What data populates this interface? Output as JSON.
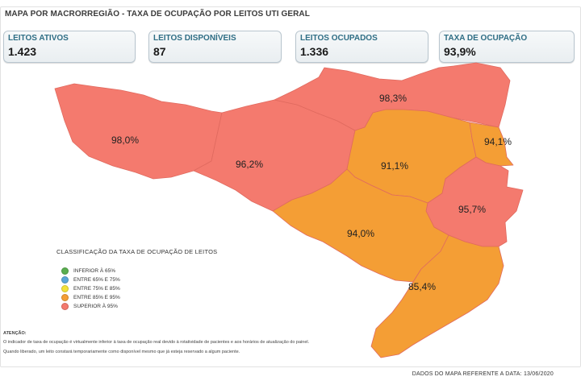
{
  "title": "MAPA POR MACRORREGIÃO - TAXA DE OCUPAÇÃO POR LEITOS UTI GERAL",
  "kpis": [
    {
      "label": "LEITOS ATIVOS",
      "value": "1.423"
    },
    {
      "label": "LEITOS DISPONÍVEIS",
      "value": "87"
    },
    {
      "label": "LEITOS OCUPADOS",
      "value": "1.336"
    },
    {
      "label": "TAXA DE OCUPAÇÃO",
      "value": "93,9%"
    }
  ],
  "regions": [
    {
      "name": "oeste",
      "value": "98,0%",
      "color": "#f47a6e"
    },
    {
      "name": "meio-oeste",
      "value": "96,2%",
      "color": "#f47a6e"
    },
    {
      "name": "planalto-norte-nordeste",
      "value": "98,3%",
      "color": "#f47a6e"
    },
    {
      "name": "vale-do-itajai",
      "value": "91,1%",
      "color": "#f49e35"
    },
    {
      "name": "foz-do-rio-itajai",
      "value": "94,1%",
      "color": "#f49e35"
    },
    {
      "name": "grande-florianopolis",
      "value": "95,7%",
      "color": "#f47a6e"
    },
    {
      "name": "serra-catarinense",
      "value": "94,0%",
      "color": "#f49e35"
    },
    {
      "name": "sul",
      "value": "85,4%",
      "color": "#f49e35"
    }
  ],
  "legend": {
    "title": "CLASSIFICAÇÃO DA TAXA DE OCUPAÇÃO DE LEITOS",
    "items": [
      {
        "label": "INFERIOR À 65%",
        "color": "#5aae4f"
      },
      {
        "label": "ENTRE 65% E 75%",
        "color": "#5aa6d8"
      },
      {
        "label": "ENTRE 75% E 85%",
        "color": "#f3e23a"
      },
      {
        "label": "ENTRE 85% E 95%",
        "color": "#f49e35"
      },
      {
        "label": "SUPERIOR À 95%",
        "color": "#f47a6e"
      }
    ]
  },
  "notes": {
    "heading": "ATENÇÃO:",
    "line1": "O indicador de taxa de ocupação é virtualmente inferior à taxa de ocupação real devido à rotatividade de pacientes e aos horários de atualização do painel.",
    "line2": "Quando liberado, um leito constará temporariamente como disponível mesmo que já esteja reservado a algum paciente."
  },
  "footer": "DADOS DO MAPA REFERENTE A DATA: 13/06/2020"
}
